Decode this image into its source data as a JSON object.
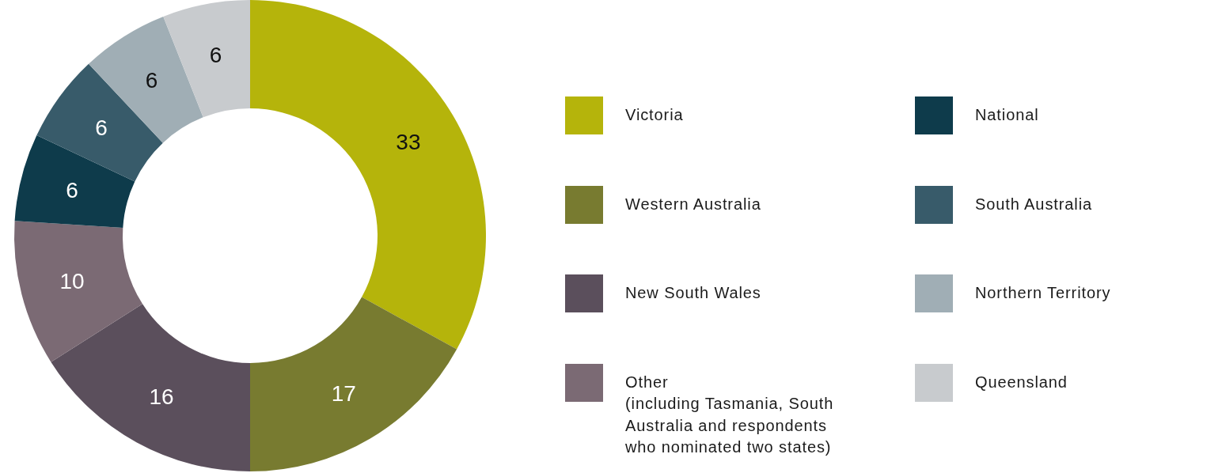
{
  "chart_data": {
    "type": "donut",
    "categories": [
      "Victoria",
      "Western Australia",
      "New South Wales",
      "Other\n(including Tasmania, South Australia and respondents who nominated two states)",
      "National",
      "South Australia",
      "Northern Territory",
      "Queensland"
    ],
    "values": [
      33,
      17,
      16,
      10,
      6,
      6,
      6,
      6
    ],
    "colors": [
      "#b5b40b",
      "#787b30",
      "#5b4f5c",
      "#7b6a74",
      "#0e3b4b",
      "#385b6a",
      "#a0aeb5",
      "#c8cbce"
    ],
    "data_labels": true,
    "legend": "right"
  }
}
